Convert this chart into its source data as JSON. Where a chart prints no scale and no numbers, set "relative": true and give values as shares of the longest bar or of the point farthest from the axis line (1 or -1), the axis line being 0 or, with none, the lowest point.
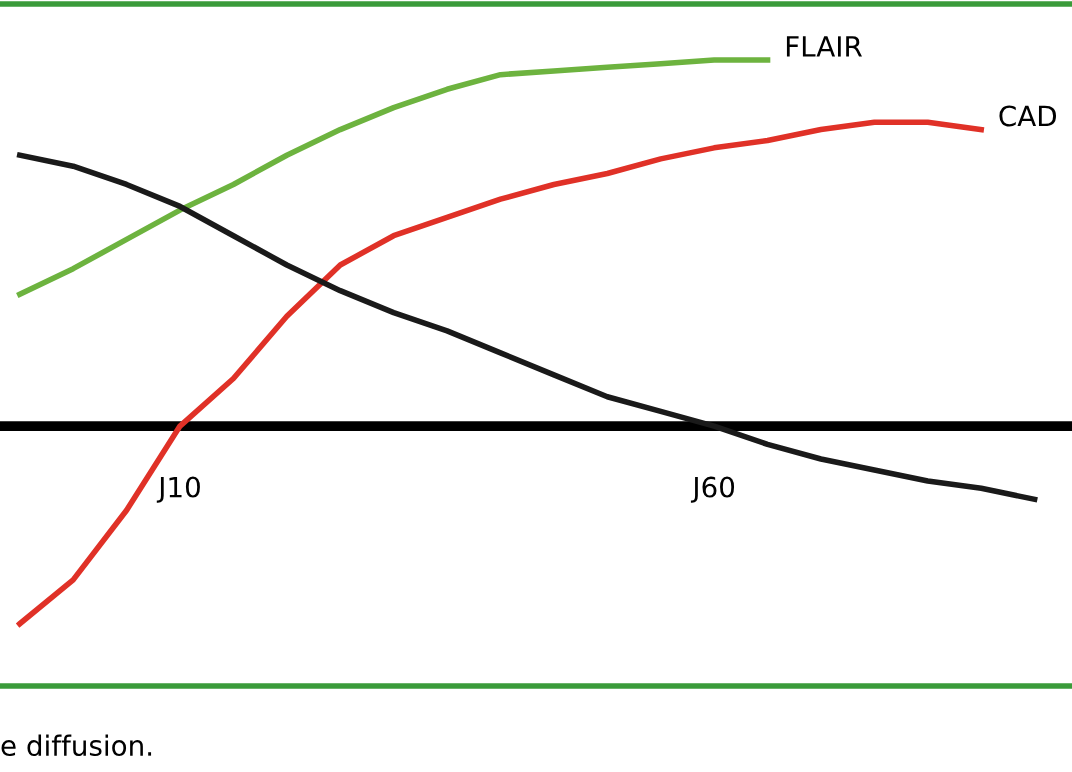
{
  "chart_data": {
    "type": "line",
    "relative": true,
    "categories": [
      null,
      null,
      null,
      "J10",
      null,
      null,
      null,
      null,
      null,
      null,
      null,
      null,
      null,
      "J60",
      null,
      null,
      null,
      null,
      null,
      null
    ],
    "series": [
      {
        "name": "FLAIR",
        "color": "#6db33f",
        "values": [
          0.36,
          0.43,
          0.51,
          0.59,
          0.66,
          0.74,
          0.81,
          0.87,
          0.92,
          0.96,
          0.97,
          0.98,
          0.99,
          1.0,
          1.0,
          null,
          null,
          null,
          null,
          null
        ]
      },
      {
        "name": "CAD",
        "color": "#e03127",
        "values": [
          -0.54,
          -0.42,
          -0.23,
          0,
          0.13,
          0.3,
          0.44,
          0.52,
          0.57,
          0.62,
          0.66,
          0.69,
          0.73,
          0.76,
          0.78,
          0.81,
          0.83,
          0.83,
          0.81,
          null
        ]
      },
      {
        "color": "#1a1a1a",
        "values": [
          0.74,
          0.71,
          0.66,
          0.6,
          0.52,
          0.44,
          0.37,
          0.31,
          0.26,
          0.2,
          0.14,
          0.08,
          0.04,
          0,
          -0.05,
          -0.09,
          -0.12,
          -0.15,
          -0.17,
          -0.2
        ]
      }
    ],
    "annotations": [
      "e diffusion."
    ],
    "marker": "none",
    "line_style": "solid",
    "legend": false,
    "grid": false
  }
}
